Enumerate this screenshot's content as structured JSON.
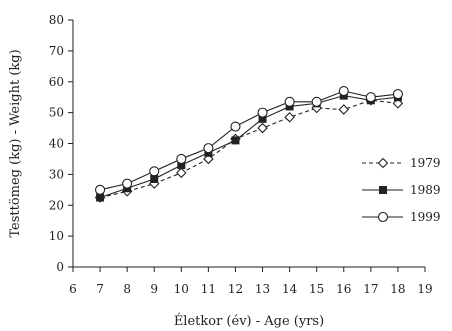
{
  "chart_data": {
    "type": "line",
    "xlabel": "Életkor (év) - Age (yrs)",
    "ylabel": "Testtömeg (kg) - Weight (kg)",
    "xlim": [
      6,
      19
    ],
    "ylim": [
      0,
      80
    ],
    "xticks": [
      6,
      7,
      8,
      9,
      10,
      11,
      12,
      13,
      14,
      15,
      16,
      17,
      18,
      19
    ],
    "yticks": [
      0,
      10,
      20,
      30,
      40,
      50,
      60,
      70,
      80
    ],
    "grid": false,
    "legend_position": "right",
    "x": [
      7,
      8,
      9,
      10,
      11,
      12,
      13,
      14,
      15,
      16,
      17,
      18
    ],
    "series": [
      {
        "name": "1979",
        "marker": "diamond-open",
        "line": "dashed",
        "values": [
          22.5,
          24.5,
          27,
          30.5,
          35,
          41.5,
          45,
          48.5,
          51.5,
          51,
          54,
          53
        ]
      },
      {
        "name": "1989",
        "marker": "square-filled",
        "line": "solid",
        "values": [
          22.5,
          25.5,
          28.5,
          33,
          37,
          41,
          48,
          52,
          53,
          55.5,
          54,
          55
        ]
      },
      {
        "name": "1999",
        "marker": "circle-open",
        "line": "solid",
        "values": [
          25,
          27,
          31,
          35,
          38.5,
          45.5,
          50,
          53.5,
          53.5,
          57,
          55,
          56
        ]
      }
    ],
    "colors": {
      "ink": "#222222",
      "background": "#ffffff"
    }
  }
}
